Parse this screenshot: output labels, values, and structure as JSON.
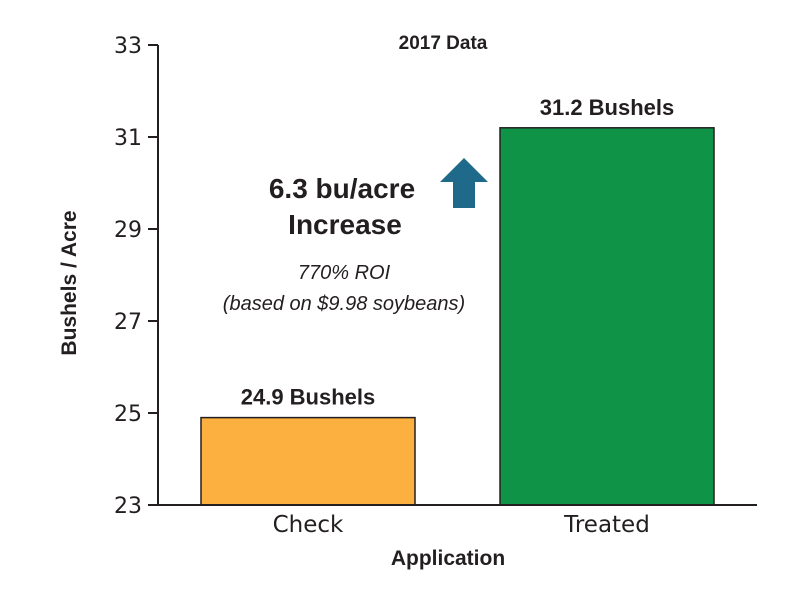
{
  "chart_data": {
    "type": "bar",
    "title": "2017 Data",
    "xlabel": "Application",
    "ylabel": "Bushels / Acre",
    "categories": [
      "Check",
      "Treated"
    ],
    "values": [
      24.9,
      31.2
    ],
    "data_labels": [
      "24.9 Bushels",
      "31.2 Bushels"
    ],
    "bar_colors": [
      "#fbb040",
      "#0f9447"
    ],
    "ylim": [
      23,
      33
    ],
    "yticks": [
      23,
      25,
      27,
      29,
      31,
      33
    ],
    "grid": false,
    "annotation": {
      "increase_line1": "6.3 bu/acre",
      "increase_line2": "Increase",
      "roi_line1": "770% ROI",
      "roi_line2": "(based on $9.98 soybeans)",
      "arrow_color": "#1f6a8a",
      "arrow_icon": "up-arrow-icon"
    }
  }
}
